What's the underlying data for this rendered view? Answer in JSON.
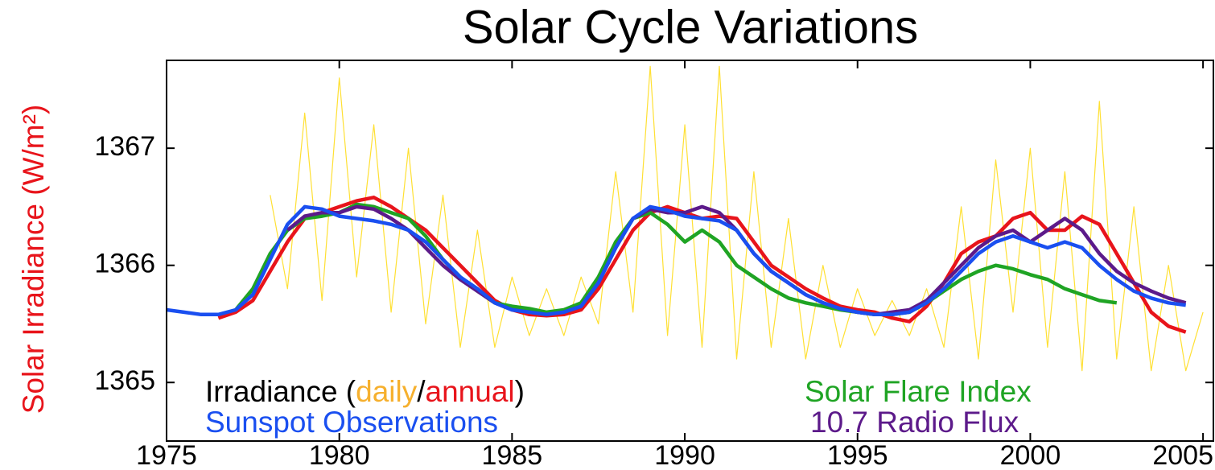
{
  "chart_data": {
    "type": "line",
    "title": "Solar Cycle Variations",
    "ylabel": "Solar Irradiance (W/m²)",
    "ylabel_color": "#e8141b",
    "legend_label": "Irradiance (daily/annual)",
    "xlim": [
      1975,
      2005.3
    ],
    "ylim": [
      1364.5,
      1367.75
    ],
    "xticks": [
      1975,
      1980,
      1985,
      1990,
      1995,
      2000,
      2005
    ],
    "yticks": [
      1365,
      1366,
      1367
    ],
    "grid": false,
    "x": [
      1975,
      1975.5,
      1976,
      1976.5,
      1977,
      1977.5,
      1978,
      1978.5,
      1979,
      1979.5,
      1980,
      1980.5,
      1981,
      1981.5,
      1982,
      1982.5,
      1983,
      1983.5,
      1984,
      1984.5,
      1985,
      1985.5,
      1986,
      1986.5,
      1987,
      1987.5,
      1988,
      1988.5,
      1989,
      1989.5,
      1990,
      1990.5,
      1991,
      1991.5,
      1992,
      1992.5,
      1993,
      1993.5,
      1994,
      1994.5,
      1995,
      1995.5,
      1996,
      1996.5,
      1997,
      1997.5,
      1998,
      1998.5,
      1999,
      1999.5,
      2000,
      2000.5,
      2001,
      2001.5,
      2002,
      2002.5,
      2003,
      2003.5,
      2004,
      2004.5,
      2005
    ],
    "series": [
      {
        "name": "daily",
        "color": "#ffe033",
        "legend_color": "#f6b02e",
        "values": [
          null,
          null,
          null,
          null,
          null,
          null,
          1366.6,
          1365.8,
          1367.3,
          1365.7,
          1367.6,
          1365.9,
          1367.2,
          1365.6,
          1367.0,
          1365.5,
          1366.6,
          1365.3,
          1366.3,
          1365.3,
          1365.9,
          1365.4,
          1365.8,
          1365.4,
          1365.9,
          1365.5,
          1366.8,
          1365.6,
          1367.7,
          1365.4,
          1367.2,
          1365.3,
          1367.7,
          1365.2,
          1366.8,
          1365.3,
          1366.4,
          1365.2,
          1366.0,
          1365.3,
          1365.8,
          1365.4,
          1365.7,
          1365.4,
          1365.8,
          1365.3,
          1366.5,
          1365.2,
          1366.9,
          1365.6,
          1367.0,
          1365.3,
          1366.8,
          1365.1,
          1367.4,
          1365.2,
          1366.5,
          1365.1,
          1366.0,
          1365.1,
          1365.6
        ]
      },
      {
        "name": "annual",
        "color": "#e8141b",
        "values": [
          null,
          null,
          null,
          1365.55,
          1365.6,
          1365.7,
          1365.95,
          1366.2,
          1366.4,
          1366.45,
          1366.5,
          1366.55,
          1366.58,
          1366.5,
          1366.4,
          1366.3,
          1366.15,
          1366.0,
          1365.85,
          1365.7,
          1365.62,
          1365.58,
          1365.57,
          1365.58,
          1365.62,
          1365.8,
          1366.05,
          1366.3,
          1366.45,
          1366.5,
          1366.45,
          1366.4,
          1366.42,
          1366.4,
          1366.2,
          1366.0,
          1365.9,
          1365.8,
          1365.72,
          1365.65,
          1365.62,
          1365.6,
          1365.55,
          1365.52,
          1365.65,
          1365.85,
          1366.1,
          1366.2,
          1366.25,
          1366.4,
          1366.45,
          1366.3,
          1366.3,
          1366.42,
          1366.35,
          1366.1,
          1365.85,
          1365.6,
          1365.48,
          1365.43,
          null
        ]
      },
      {
        "name": "Solar Flare Index",
        "color": "#1fa424",
        "values": [
          null,
          null,
          null,
          null,
          1365.62,
          1365.8,
          1366.1,
          1366.3,
          1366.4,
          1366.42,
          1366.45,
          1366.52,
          1366.5,
          1366.45,
          1366.4,
          1366.25,
          1366.05,
          1365.9,
          1365.78,
          1365.68,
          1365.65,
          1365.63,
          1365.6,
          1365.62,
          1365.68,
          1365.9,
          1366.2,
          1366.4,
          1366.45,
          1366.35,
          1366.2,
          1366.3,
          1366.2,
          1366.0,
          1365.9,
          1365.8,
          1365.72,
          1365.68,
          1365.65,
          1365.62,
          1365.6,
          1365.58,
          1365.58,
          1365.6,
          1365.68,
          1365.78,
          1365.88,
          1365.95,
          1366.0,
          1365.97,
          1365.92,
          1365.88,
          1365.8,
          1365.75,
          1365.7,
          1365.68,
          null,
          null,
          null,
          null,
          null
        ]
      },
      {
        "name": "10.7 Radio Flux",
        "color": "#5c1a8a",
        "values": [
          null,
          null,
          null,
          null,
          null,
          null,
          null,
          1366.3,
          1366.42,
          1366.45,
          1366.45,
          1366.5,
          1366.48,
          1366.4,
          1366.3,
          1366.15,
          1366.0,
          1365.88,
          1365.78,
          1365.68,
          1365.62,
          1365.6,
          1365.58,
          1365.6,
          1365.65,
          1365.85,
          1366.15,
          1366.4,
          1366.48,
          1366.45,
          1366.45,
          1366.5,
          1366.45,
          1366.3,
          1366.1,
          1365.95,
          1365.85,
          1365.75,
          1365.68,
          1365.63,
          1365.6,
          1365.58,
          1365.6,
          1365.62,
          1365.7,
          1365.85,
          1366.0,
          1366.15,
          1366.25,
          1366.3,
          1366.2,
          1366.3,
          1366.4,
          1366.3,
          1366.1,
          1365.95,
          1365.85,
          1365.78,
          1365.72,
          1365.68,
          null
        ]
      },
      {
        "name": "Sunspot Observations",
        "color": "#1a4ff0",
        "values": [
          1365.62,
          1365.6,
          1365.58,
          1365.58,
          1365.62,
          1365.75,
          1366.05,
          1366.35,
          1366.5,
          1366.48,
          1366.42,
          1366.4,
          1366.38,
          1366.35,
          1366.3,
          1366.2,
          1366.05,
          1365.9,
          1365.8,
          1365.68,
          1365.62,
          1365.6,
          1365.58,
          1365.6,
          1365.65,
          1365.85,
          1366.15,
          1366.4,
          1366.5,
          1366.47,
          1366.42,
          1366.4,
          1366.38,
          1366.3,
          1366.1,
          1365.95,
          1365.85,
          1365.75,
          1365.68,
          1365.63,
          1365.6,
          1365.58,
          1365.58,
          1365.6,
          1365.68,
          1365.8,
          1365.95,
          1366.1,
          1366.2,
          1366.25,
          1366.2,
          1366.15,
          1366.2,
          1366.15,
          1366.0,
          1365.88,
          1365.78,
          1365.72,
          1365.68,
          1365.66,
          null
        ]
      }
    ]
  }
}
